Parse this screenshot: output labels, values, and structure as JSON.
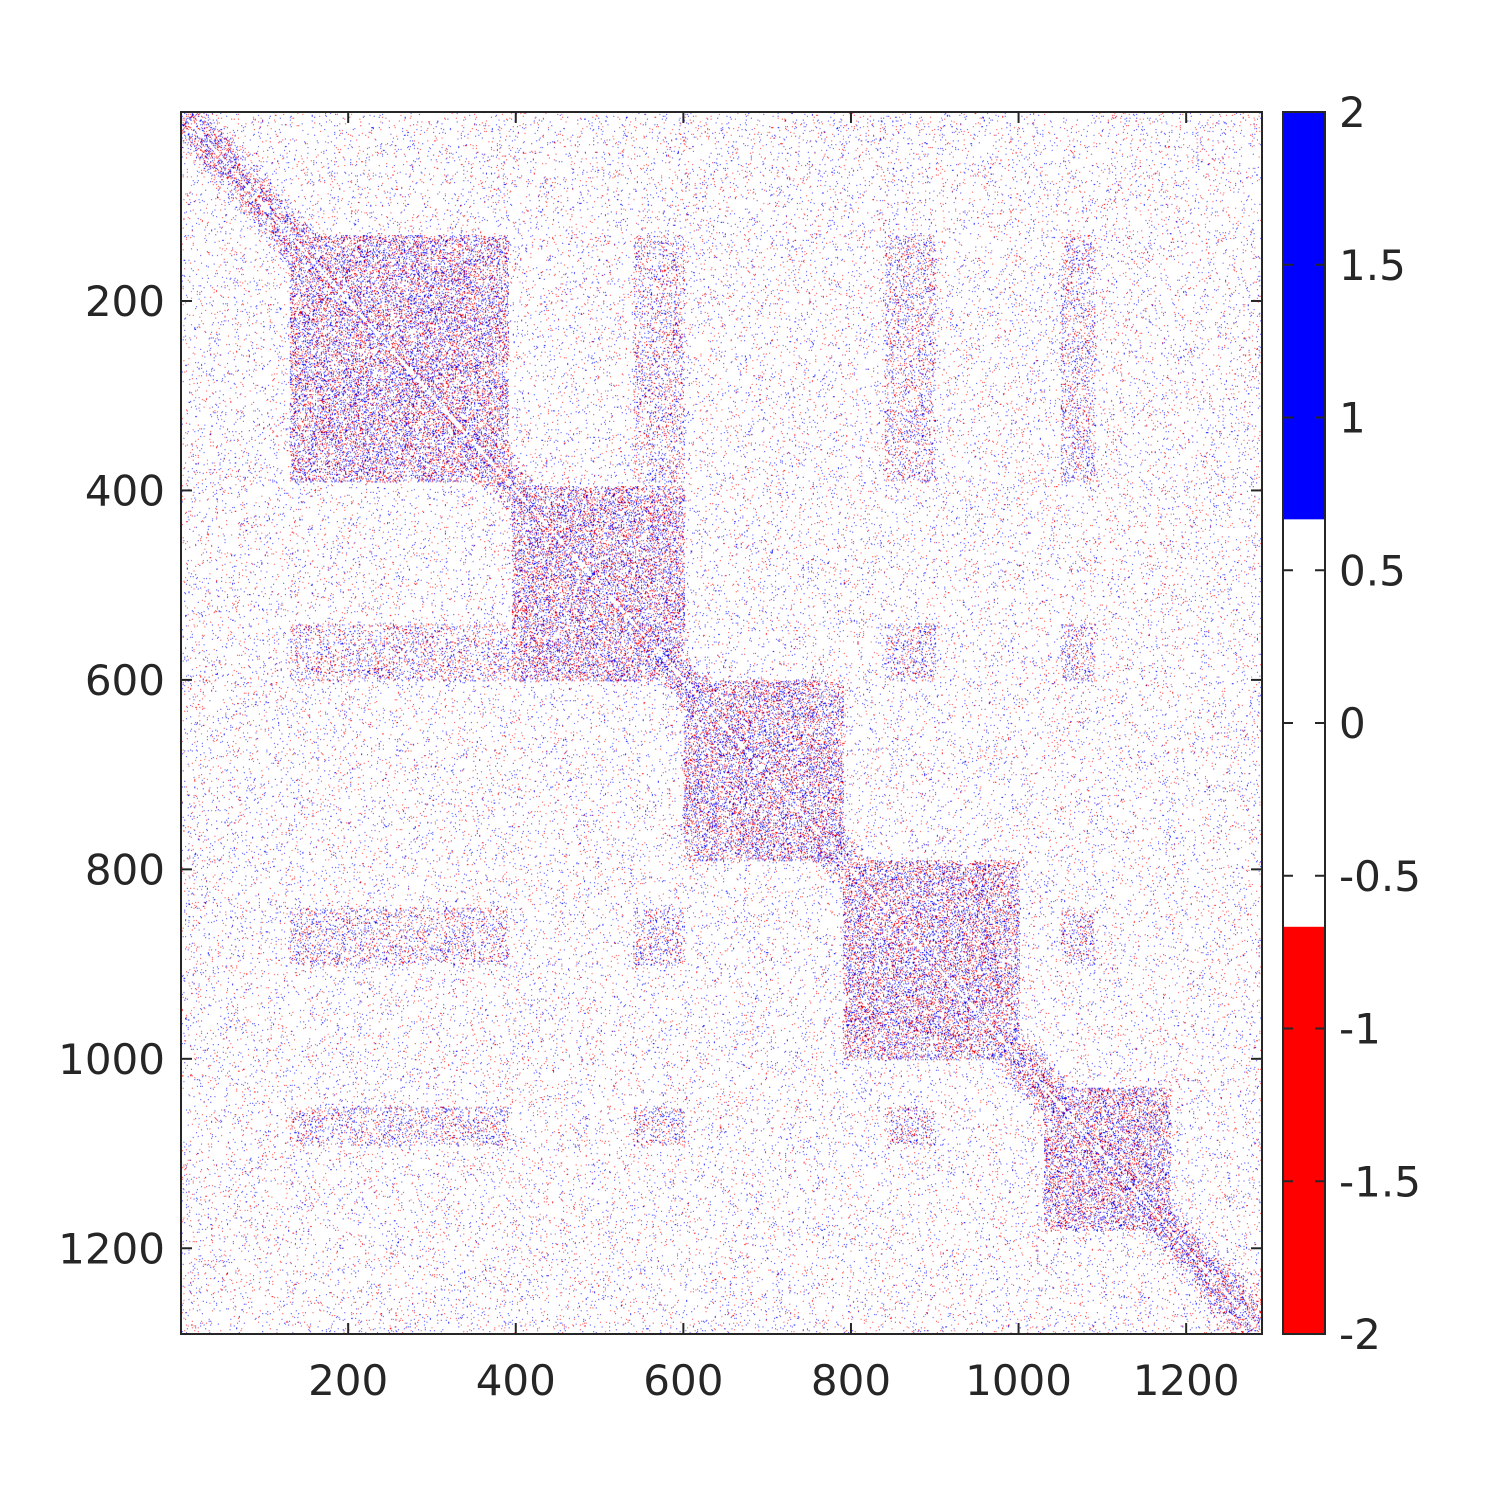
{
  "chart_data": {
    "type": "heatmap",
    "title": "",
    "xlabel": "",
    "ylabel": "",
    "matrix_size": 1290,
    "x_range": [
      0.5,
      1290.5
    ],
    "y_range": [
      0.5,
      1290.5
    ],
    "y_reversed": true,
    "x_ticks": [
      200,
      400,
      600,
      800,
      1000,
      1200
    ],
    "x_tick_labels": [
      "200",
      "400",
      "600",
      "800",
      "1000",
      "1200"
    ],
    "y_ticks": [
      200,
      400,
      600,
      800,
      1000,
      1200
    ],
    "y_tick_labels": [
      "200",
      "400",
      "600",
      "800",
      "1000",
      "1200"
    ],
    "colorbar": {
      "placement": "right",
      "range": [
        -2,
        2
      ],
      "ticks": [
        2,
        1.5,
        1,
        0.5,
        0,
        -0.5,
        -1,
        -1.5,
        -2
      ],
      "tick_labels": [
        "2",
        "1.5",
        "1",
        "0.5",
        "0",
        "-0.5",
        "-1",
        "-1.5",
        "-2"
      ],
      "bands": [
        {
          "from": -2,
          "to": -0.6667,
          "color": "#ff0000"
        },
        {
          "from": -0.6667,
          "to": 0.6667,
          "color": "#ffffff"
        },
        {
          "from": 0.6667,
          "to": 2,
          "color": "#0000ff"
        }
      ]
    },
    "pattern": {
      "description_values": "sparse symmetric matrix with entries in {-1, 0, 1}",
      "dense_blocks": [
        [
          130,
          390
        ],
        [
          395,
          600
        ],
        [
          600,
          790
        ],
        [
          790,
          1000
        ],
        [
          1030,
          1180
        ]
      ],
      "off_diagonal_clusters": [
        [
          [
            130,
            390
          ],
          [
            540,
            600
          ]
        ],
        [
          [
            130,
            390
          ],
          [
            1050,
            1090
          ]
        ],
        [
          [
            540,
            600
          ],
          [
            1050,
            1090
          ]
        ],
        [
          [
            130,
            390
          ],
          [
            840,
            900
          ]
        ],
        [
          [
            540,
            600
          ],
          [
            840,
            900
          ]
        ],
        [
          [
            840,
            900
          ],
          [
            1050,
            1090
          ]
        ]
      ]
    }
  }
}
